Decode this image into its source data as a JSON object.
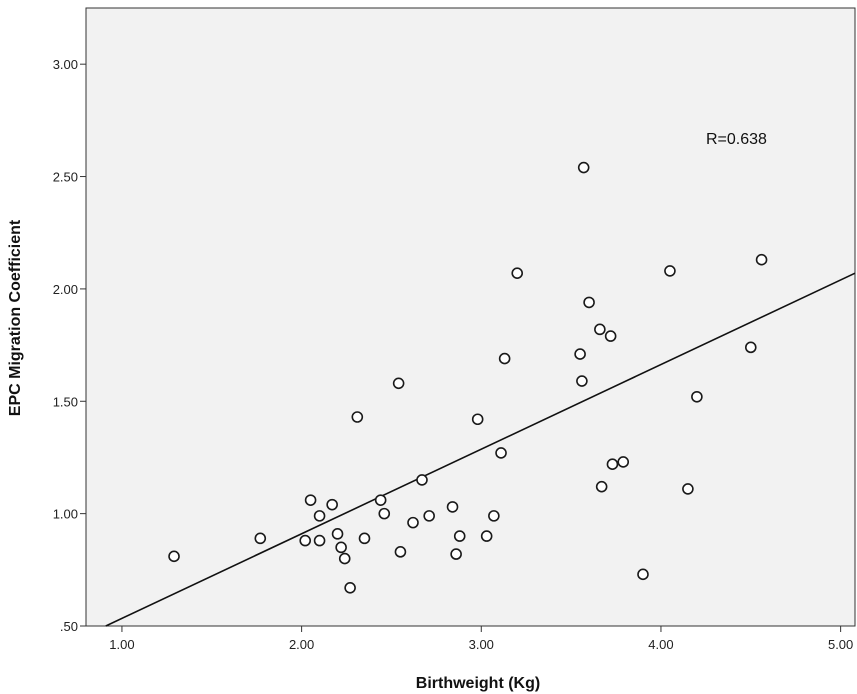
{
  "chart_data": {
    "type": "scatter",
    "title": "",
    "xlabel": "Birthweight (Kg)",
    "ylabel": "EPC Migration Coefficient",
    "xlim": [
      0.8,
      5.08
    ],
    "ylim": [
      0.5,
      3.25
    ],
    "x_ticks": [
      1.0,
      2.0,
      3.0,
      4.0,
      5.0
    ],
    "x_tick_labels": [
      "1.00",
      "2.00",
      "3.00",
      "4.00",
      "5.00"
    ],
    "y_ticks": [
      0.5,
      1.0,
      1.5,
      2.0,
      2.5,
      3.0
    ],
    "y_tick_labels": [
      ".50",
      "1.00",
      "1.50",
      "2.00",
      "2.50",
      "3.00"
    ],
    "grid": false,
    "colors": {
      "plot_background": "#f2f2f2",
      "marker_stroke": "#1a1a1a",
      "line": "#111111",
      "axis": "#333333"
    },
    "annotation": "R=0.638",
    "fit_line": {
      "x": [
        0.91,
        5.08
      ],
      "y": [
        0.5,
        2.07
      ]
    },
    "points": [
      {
        "x": 1.29,
        "y": 0.81
      },
      {
        "x": 1.77,
        "y": 0.89
      },
      {
        "x": 2.02,
        "y": 0.88
      },
      {
        "x": 2.05,
        "y": 1.06
      },
      {
        "x": 2.1,
        "y": 0.99
      },
      {
        "x": 2.1,
        "y": 0.88
      },
      {
        "x": 2.17,
        "y": 1.04
      },
      {
        "x": 2.2,
        "y": 0.91
      },
      {
        "x": 2.22,
        "y": 0.85
      },
      {
        "x": 2.24,
        "y": 0.8
      },
      {
        "x": 2.27,
        "y": 0.67
      },
      {
        "x": 2.31,
        "y": 1.43
      },
      {
        "x": 2.35,
        "y": 0.89
      },
      {
        "x": 2.44,
        "y": 1.06
      },
      {
        "x": 2.46,
        "y": 1.0
      },
      {
        "x": 2.54,
        "y": 1.58
      },
      {
        "x": 2.55,
        "y": 0.83
      },
      {
        "x": 2.62,
        "y": 0.96
      },
      {
        "x": 2.67,
        "y": 1.15
      },
      {
        "x": 2.71,
        "y": 0.99
      },
      {
        "x": 2.84,
        "y": 1.03
      },
      {
        "x": 2.86,
        "y": 0.82
      },
      {
        "x": 2.88,
        "y": 0.9
      },
      {
        "x": 2.98,
        "y": 1.42
      },
      {
        "x": 3.03,
        "y": 0.9
      },
      {
        "x": 3.07,
        "y": 0.99
      },
      {
        "x": 3.11,
        "y": 1.27
      },
      {
        "x": 3.13,
        "y": 1.69
      },
      {
        "x": 3.2,
        "y": 2.07
      },
      {
        "x": 3.55,
        "y": 1.71
      },
      {
        "x": 3.56,
        "y": 1.59
      },
      {
        "x": 3.57,
        "y": 2.54
      },
      {
        "x": 3.6,
        "y": 1.94
      },
      {
        "x": 3.66,
        "y": 1.82
      },
      {
        "x": 3.67,
        "y": 1.12
      },
      {
        "x": 3.72,
        "y": 1.79
      },
      {
        "x": 3.73,
        "y": 1.22
      },
      {
        "x": 3.79,
        "y": 1.23
      },
      {
        "x": 3.9,
        "y": 0.73
      },
      {
        "x": 4.05,
        "y": 2.08
      },
      {
        "x": 4.15,
        "y": 1.11
      },
      {
        "x": 4.2,
        "y": 1.52
      },
      {
        "x": 4.5,
        "y": 1.74
      },
      {
        "x": 4.56,
        "y": 2.13
      }
    ]
  }
}
